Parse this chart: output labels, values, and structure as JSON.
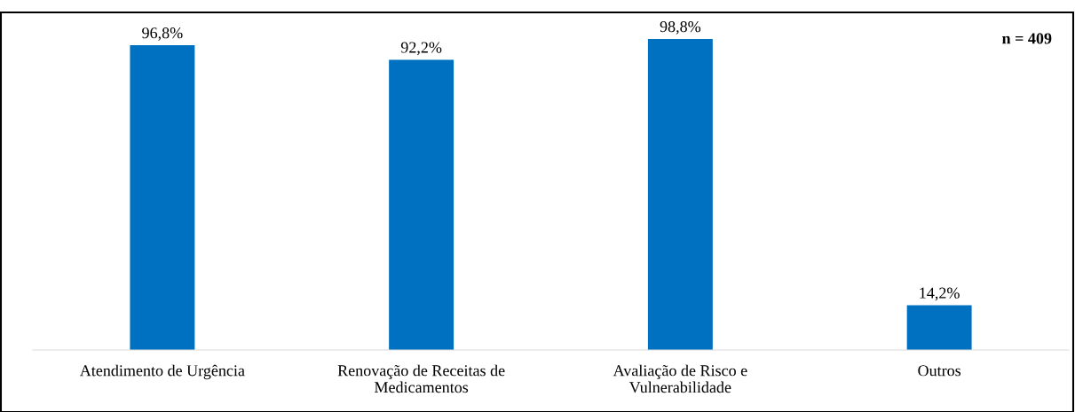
{
  "chart_data": {
    "type": "bar",
    "categories": [
      "Atendimento de Urgência",
      "Renovação de Receitas de\nMedicamentos",
      "Avaliação de Risco e\nVulnerabilidade",
      "Outros"
    ],
    "values": [
      96.8,
      92.2,
      98.8,
      14.2
    ],
    "color": "#0070c0",
    "value_labels": [
      "96,8%",
      "92,2%",
      "98,8%",
      "14,2%"
    ],
    "annotations": [
      "n = 409"
    ],
    "grid": false,
    "legend": false
  }
}
